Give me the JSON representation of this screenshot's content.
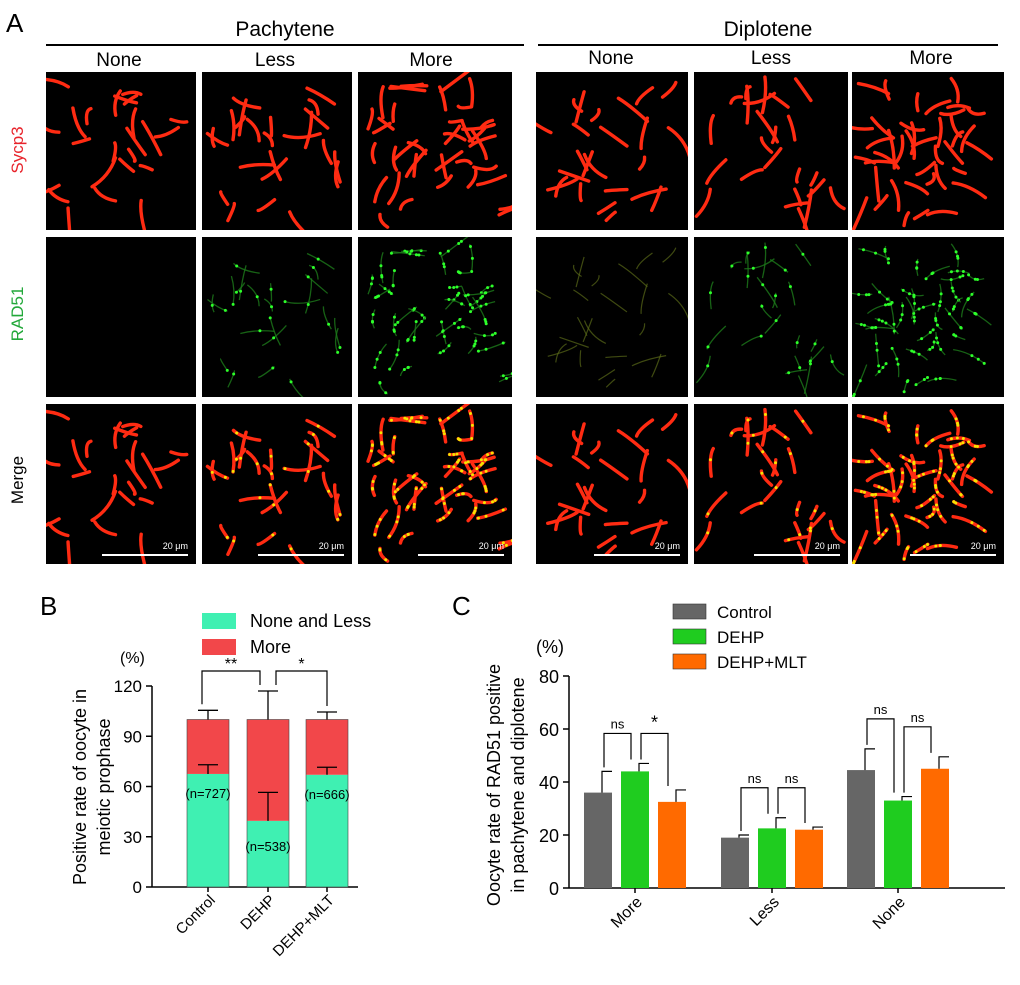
{
  "panel_a": {
    "letter": "A",
    "stages": [
      "Pachytene",
      "Diplotene"
    ],
    "columns": [
      "None",
      "Less",
      "More"
    ],
    "rows": [
      {
        "label": "Sycp3",
        "color": "#e8232b"
      },
      {
        "label": "RAD51",
        "color": "#22a83a"
      },
      {
        "label": "Merge",
        "color": "#000000"
      }
    ],
    "scale_label": "20 μm",
    "colors": {
      "sycp3": "#ff2b12",
      "rad51": "#2dff2a",
      "merge_overlap": "#f6e400",
      "background": "#000000"
    }
  },
  "chart_data": [
    {
      "panel": "B",
      "type": "bar",
      "stacked": true,
      "categories": [
        "Control",
        "DEHP",
        "DEHP+MLT"
      ],
      "series": [
        {
          "name": "None and Less",
          "color": "#3ff0b2",
          "values": [
            67.5,
            39.5,
            67
          ],
          "errors": [
            5.5,
            17,
            4.5
          ]
        },
        {
          "name": "More",
          "color": "#f2474a",
          "values": [
            32.5,
            60.5,
            33
          ],
          "errors": [
            5.5,
            17,
            4.5
          ]
        }
      ],
      "counts": [
        "(n=727)",
        "(n=538)",
        "(n=666)"
      ],
      "significance": [
        {
          "from": 0,
          "to": 1,
          "label": "**"
        },
        {
          "from": 1,
          "to": 2,
          "label": "*"
        }
      ],
      "ylabel": "Positive  rate of oocyte in meiotic prophase",
      "yunit": "(%)",
      "ylim": [
        0,
        120
      ],
      "yticks": [
        0,
        30,
        60,
        90,
        120
      ],
      "legend_position": "top-right"
    },
    {
      "panel": "C",
      "type": "bar",
      "categories": [
        "More",
        "Less",
        "None"
      ],
      "series": [
        {
          "name": "Control",
          "color": "#666666",
          "values": [
            36,
            19,
            44.5
          ],
          "errors": [
            8,
            1,
            8
          ]
        },
        {
          "name": "DEHP",
          "color": "#1fcc1f",
          "values": [
            44,
            22.5,
            33
          ],
          "errors": [
            3,
            4,
            1.5
          ]
        },
        {
          "name": "DEHP+MLT",
          "color": "#ff6a00",
          "values": [
            32.5,
            22,
            45
          ],
          "errors": [
            4.5,
            1,
            4.5
          ]
        }
      ],
      "significance": [
        {
          "group": 0,
          "from": 0,
          "to": 1,
          "label": "ns"
        },
        {
          "group": 0,
          "from": 1,
          "to": 2,
          "label": "*"
        },
        {
          "group": 1,
          "from": 0,
          "to": 1,
          "label": "ns"
        },
        {
          "group": 1,
          "from": 1,
          "to": 2,
          "label": "ns"
        },
        {
          "group": 2,
          "from": 0,
          "to": 1,
          "label": "ns"
        },
        {
          "group": 2,
          "from": 1,
          "to": 2,
          "label": "ns"
        }
      ],
      "ylabel": "Oocyte rate of RAD51 positive in pachytene and diplotene",
      "yunit": "(%)",
      "ylim": [
        0,
        80
      ],
      "yticks": [
        0,
        20,
        40,
        60,
        80
      ],
      "legend_position": "top-center"
    }
  ]
}
